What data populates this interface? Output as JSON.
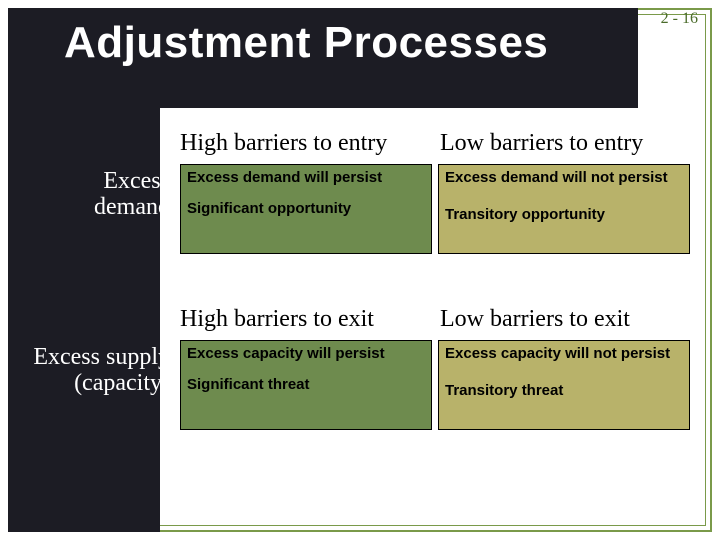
{
  "page_number": "2 - 16",
  "title": "Adjustment Processes",
  "colors": {
    "dark_panel": "#1c1c24",
    "frame": "#7a9a4a",
    "green_cell": "#6e8b4e",
    "olive_cell": "#b8b26a",
    "text_dark": "#000000",
    "text_light": "#ffffff",
    "page_num": "#4a6b2a"
  },
  "section1": {
    "header_high": "High barriers to entry",
    "header_low": "Low barriers to entry",
    "row_label_line1": "Excess",
    "row_label_line2": "demand",
    "cell_high_line1": "Excess demand will persist",
    "cell_high_line2": "Significant opportunity",
    "cell_low_line1": "Excess demand will not persist",
    "cell_low_line2": "Transitory opportunity"
  },
  "section2": {
    "header_high": "High barriers to exit",
    "header_low": "Low barriers to exit",
    "row_label_line1": "Excess supply",
    "row_label_line2": "(capacity)",
    "cell_high_line1": "Excess capacity will persist",
    "cell_high_line2": "Significant threat",
    "cell_low_line1": "Excess capacity will not persist",
    "cell_low_line2": "Transitory threat"
  }
}
